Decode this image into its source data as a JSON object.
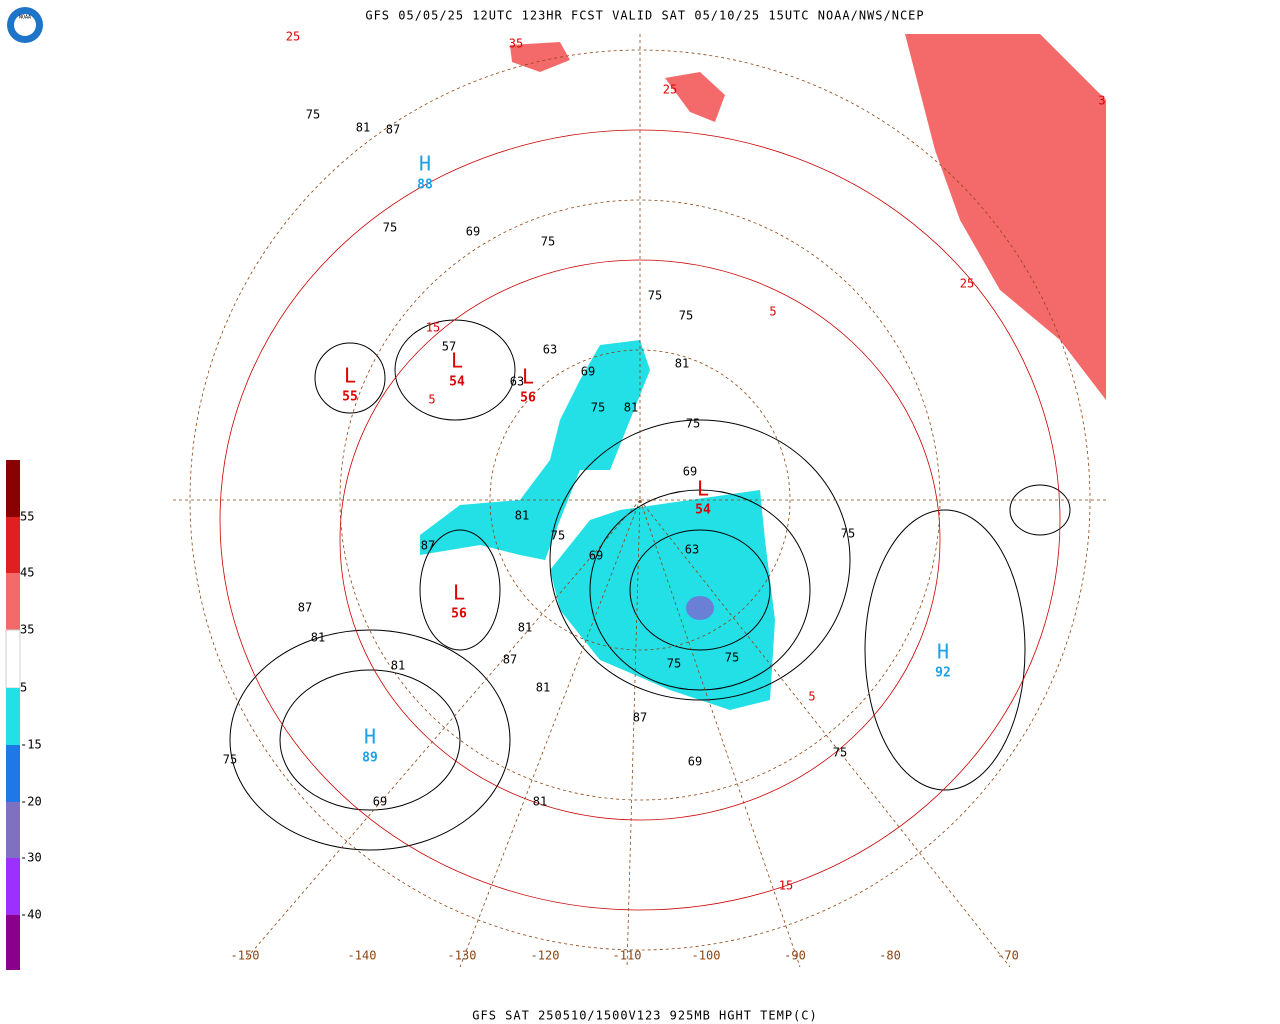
{
  "header": {
    "title": "GFS 05/05/25 12UTC 123HR FCST VALID SAT 05/10/25 15UTC NOAA/NWS/NCEP",
    "logo": "NOAA"
  },
  "footer": {
    "text": "GFS SAT 250510/1500V123 925MB HGHT TEMP(C)"
  },
  "colorbar": {
    "labels": [
      "55",
      "45",
      "35",
      "5",
      "-15",
      "-20",
      "-30",
      "-40"
    ]
  },
  "map": {
    "longitudes": [
      "-150",
      "-140",
      "-130",
      "-120",
      "-110",
      "-100",
      "-90",
      "-80",
      "-70"
    ],
    "pressure_centers": [
      {
        "letter": "H",
        "value": "88"
      },
      {
        "letter": "H",
        "value": "89"
      },
      {
        "letter": "H",
        "value": "92"
      },
      {
        "letter": "L",
        "value": "54"
      },
      {
        "letter": "L",
        "value": "55"
      },
      {
        "letter": "L",
        "value": "56"
      },
      {
        "letter": "L",
        "value": "56"
      },
      {
        "letter": "L",
        "value": "54"
      }
    ],
    "height_labels": [
      "75",
      "75",
      "81",
      "87",
      "69",
      "75",
      "75",
      "75",
      "63",
      "57",
      "63",
      "69",
      "75",
      "81",
      "81",
      "75",
      "69",
      "63",
      "69",
      "75",
      "81",
      "87",
      "87",
      "81",
      "81",
      "87",
      "81",
      "75",
      "75",
      "87",
      "81",
      "75",
      "69",
      "81",
      "69",
      "75",
      "75"
    ],
    "temp_labels": [
      "25",
      "35",
      "25",
      "15",
      "5",
      "25",
      "5",
      "5",
      "15",
      "3"
    ]
  }
}
